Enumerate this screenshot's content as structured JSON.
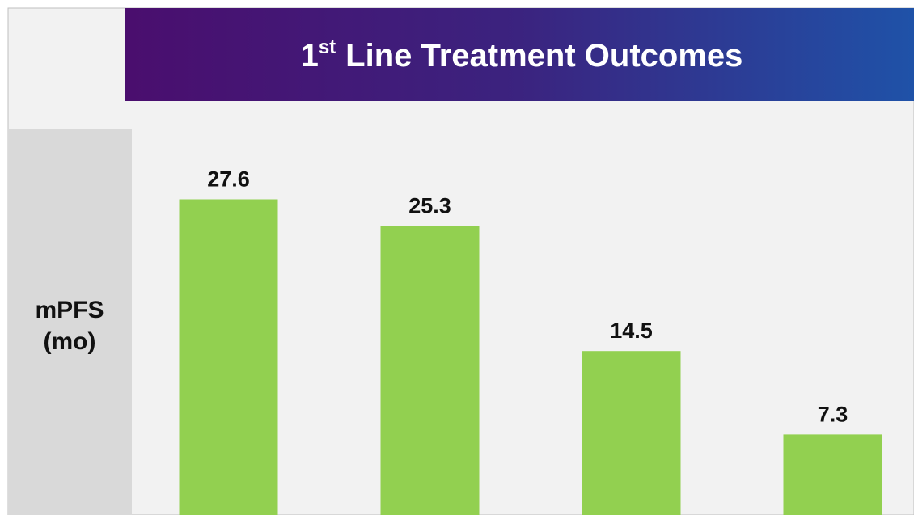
{
  "chart_data": {
    "type": "bar",
    "title": {
      "number": "1",
      "suffix": "st",
      "text": "Line Treatment Outcomes"
    },
    "y_label": [
      "mPFS",
      "(mo)"
    ],
    "values": [
      27.6,
      25.3,
      14.5,
      7.3
    ],
    "color": "#92d050"
  }
}
